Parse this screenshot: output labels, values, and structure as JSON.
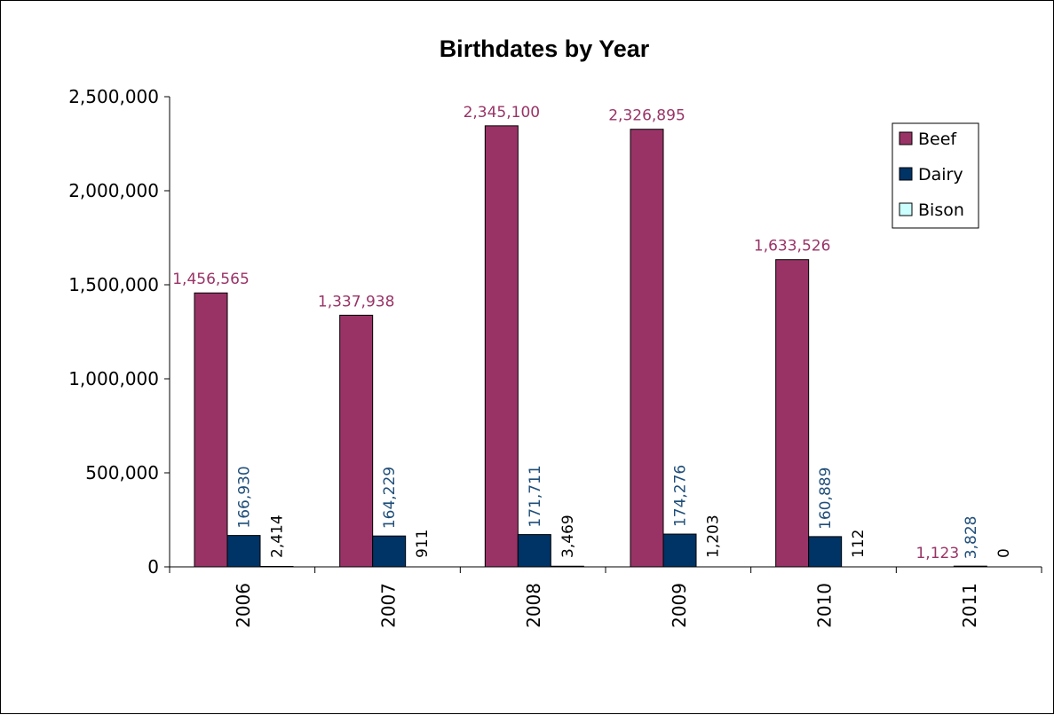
{
  "chart_data": {
    "type": "bar",
    "title": "Birthdates by Year",
    "xlabel": "",
    "ylabel": "",
    "categories": [
      "2006",
      "2007",
      "2008",
      "2009",
      "2010",
      "2011"
    ],
    "ylim": [
      0,
      2500000
    ],
    "yticks": [
      0,
      500000,
      1000000,
      1500000,
      2000000,
      2500000
    ],
    "ytick_labels": [
      "0",
      "500,000",
      "1,000,000",
      "1,500,000",
      "2,000,000",
      "2,500,000"
    ],
    "grid": false,
    "legend_position": "top-right",
    "series": [
      {
        "name": "Beef",
        "color": "#993366",
        "label_color": "#993366",
        "values": [
          1456565,
          1337938,
          2345100,
          2326895,
          1633526,
          1123
        ],
        "labels": [
          "1,456,565",
          "1,337,938",
          "2,345,100",
          "2,326,895",
          "1,633,526",
          "1,123"
        ]
      },
      {
        "name": "Dairy",
        "color": "#003366",
        "label_color": "#1F4E79",
        "values": [
          166930,
          164229,
          171711,
          174276,
          160889,
          3828
        ],
        "labels": [
          "166,930",
          "164,229",
          "171,711",
          "174,276",
          "160,889",
          "3,828"
        ]
      },
      {
        "name": "Bison",
        "color": "#CCFFFF",
        "label_color": "#000000",
        "values": [
          2414,
          911,
          3469,
          1203,
          112,
          0
        ],
        "labels": [
          "2,414",
          "911",
          "3,469",
          "1,203",
          "112",
          "0"
        ]
      }
    ]
  }
}
